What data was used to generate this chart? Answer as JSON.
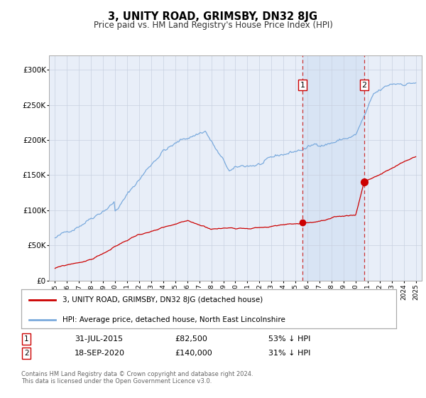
{
  "title": "3, UNITY ROAD, GRIMSBY, DN32 8JG",
  "subtitle": "Price paid vs. HM Land Registry's House Price Index (HPI)",
  "red_label": "3, UNITY ROAD, GRIMSBY, DN32 8JG (detached house)",
  "blue_label": "HPI: Average price, detached house, North East Lincolnshire",
  "annotation1_date": "31-JUL-2015",
  "annotation1_value": "£82,500",
  "annotation1_pct": "53% ↓ HPI",
  "annotation2_date": "18-SEP-2020",
  "annotation2_value": "£140,000",
  "annotation2_pct": "31% ↓ HPI",
  "marker1_x": 2015.58,
  "marker1_y_red": 82500,
  "marker2_x": 2020.72,
  "marker2_y_red": 140000,
  "xmin": 1994.5,
  "xmax": 2025.5,
  "ymin": 0,
  "ymax": 320000,
  "yticks": [
    0,
    50000,
    100000,
    150000,
    200000,
    250000,
    300000
  ],
  "ytick_labels": [
    "£0",
    "£50K",
    "£100K",
    "£150K",
    "£200K",
    "£250K",
    "£300K"
  ],
  "xticks": [
    1995,
    1996,
    1997,
    1998,
    1999,
    2000,
    2001,
    2002,
    2003,
    2004,
    2005,
    2006,
    2007,
    2008,
    2009,
    2010,
    2011,
    2012,
    2013,
    2014,
    2015,
    2016,
    2017,
    2018,
    2019,
    2020,
    2021,
    2022,
    2023,
    2024,
    2025
  ],
  "background_color": "#ffffff",
  "plot_bg_color": "#e8eef8",
  "grid_color": "#c8d0e0",
  "red_color": "#cc0000",
  "blue_color": "#7aaadd",
  "dashed_line_color": "#cc3333",
  "shaded_region_color": "#d8e4f4",
  "footer_text": "Contains HM Land Registry data © Crown copyright and database right 2024.\nThis data is licensed under the Open Government Licence v3.0."
}
